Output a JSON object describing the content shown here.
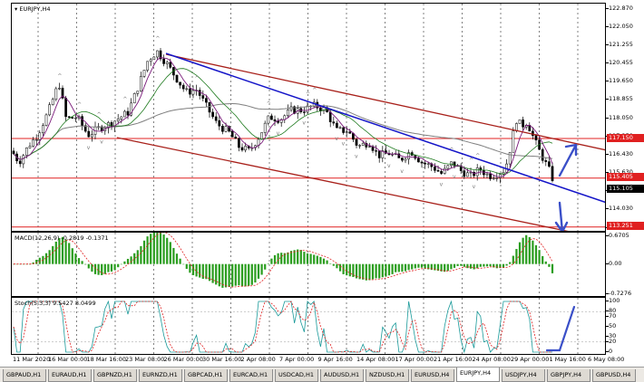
{
  "colors": {
    "bull_candle": "#000000",
    "bear_candle": "#000000",
    "channel": "#a8201a",
    "trendline": "#1414c8",
    "level_line": "#e02020",
    "level_flag": "#e02020",
    "price_flag": "#000000",
    "macd_hist": "#2a9d1e",
    "signal": "#e02020",
    "stoch_main": "#1a9a9a",
    "stoch_signal": "#e02020",
    "ma_fast": "#7a1a7a",
    "ma_mid": "#1e7a1e",
    "ma_slow": "#7f7f7f",
    "arrow": "#3a4fc8"
  },
  "main": {
    "symbol_label": "EURJPY,H4",
    "price_ticks": [
      "122.870",
      "122.050",
      "121.255",
      "120.455",
      "119.650",
      "118.855",
      "118.050",
      "117.250",
      "116.430",
      "115.630",
      "114.830",
      "114.030",
      "113.210"
    ],
    "level_flags": [
      {
        "name": "level-117",
        "label": "117.150",
        "value": 117.15
      },
      {
        "name": "level-115",
        "label": "115.405",
        "value": 115.405
      },
      {
        "name": "level-113",
        "label": "113.251",
        "value": 113.251
      }
    ],
    "current_price": {
      "label": "115.105",
      "value": 115.105
    }
  },
  "macd": {
    "label": "MACD(12,26,9) -0.2819 -0.1371",
    "ticks": [
      "0.6705",
      "0.00",
      "-0.7276"
    ]
  },
  "stoch": {
    "label": "Stoch(5,3,3) 9.5427 8.0499",
    "ticks": [
      "100",
      "80",
      "70",
      "50",
      "30",
      "20",
      "0"
    ]
  },
  "time_axis": [
    "11 Mar 2020",
    "16 Mar 00:00",
    "18 Mar 16:00",
    "23 Mar 08:00",
    "26 Mar 00:00",
    "30 Mar 16:00",
    "2 Apr 08:00",
    "7 Apr 00:00",
    "9 Apr 16:00",
    "14 Apr 08:00",
    "17 Apr 00:00",
    "21 Apr 16:00",
    "24 Apr 08:00",
    "29 Apr 00:00",
    "1 May 16:00",
    "6 May 08:00"
  ],
  "tabs": [
    "GBPAUD,H1",
    "EURAUD,H1",
    "GBPNZD,H1",
    "EURNZD,H1",
    "GBPCAD,H1",
    "EURCAD,H1",
    "USDCAD,H1",
    "AUDUSD,H1",
    "NZDUSD,H1",
    "EURUSD,H4",
    "EURJPY,H4",
    "USDJPY,H4",
    "GBPJPY,H4",
    "GBPUSD,H4"
  ],
  "active_tab": "EURJPY,H4",
  "chart_data": {
    "type": "line",
    "title": "EURJPY,H4",
    "ylim": [
      113.0,
      123.1
    ],
    "grid": true,
    "x": [
      "11 Mar 2020",
      "16 Mar 00:00",
      "18 Mar 16:00",
      "23 Mar 08:00",
      "26 Mar 00:00",
      "30 Mar 16:00",
      "2 Apr 08:00",
      "7 Apr 00:00",
      "9 Apr 16:00",
      "14 Apr 08:00",
      "17 Apr 00:00",
      "21 Apr 16:00",
      "24 Apr 08:00",
      "29 Apr 00:00",
      "1 May 16:00",
      "6 May 08:00"
    ],
    "series": [
      {
        "values": [
          116.3,
          117.7,
          117.5,
          119.6,
          120.8,
          118.3,
          117.0,
          118.1,
          118.5,
          117.4,
          116.8,
          116.4,
          115.8,
          115.9,
          117.2,
          115.1
        ]
      }
    ]
  }
}
